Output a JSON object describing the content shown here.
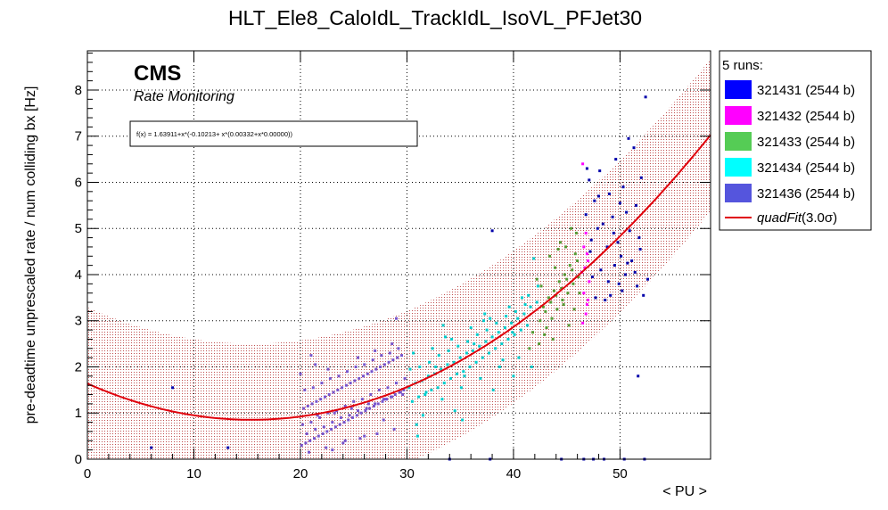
{
  "chart_data": {
    "type": "scatter",
    "title": "HLT_Ele8_CaloIdL_TrackIdL_IsoVL_PFJet30",
    "xlabel": "< PU >",
    "ylabel": "pre-deadtime unprescaled rate / num colliding bx [Hz]",
    "xlim": [
      0,
      58.5
    ],
    "ylim": [
      0,
      8.85
    ],
    "x_ticks": [
      "0",
      "10",
      "20",
      "30",
      "40",
      "50"
    ],
    "y_ticks": [
      "0",
      "1",
      "2",
      "3",
      "4",
      "5",
      "6",
      "7",
      "8"
    ],
    "grid": true,
    "cms_label": "CMS",
    "cms_sublabel": "Rate Monitoring",
    "fit_formula": "f(x) = 1.63911+x*(-0.10213+ x*(0.00332+x*0.00000))",
    "fit": {
      "name": "quadFit",
      "sigma": "(3.0σ)",
      "a": 1.63911,
      "b": -0.10213,
      "c": 0.00332,
      "band_half_width": 1.65,
      "color": "#e0000b"
    },
    "legend": {
      "header": "5 runs:",
      "position": "outside-right",
      "entries": [
        {
          "label": "321431 (2544 b)",
          "color": "#0000ff"
        },
        {
          "label": "321432 (2544 b)",
          "color": "#ff00ff"
        },
        {
          "label": "321433 (2544 b)",
          "color": "#55cc55"
        },
        {
          "label": "321434 (2544 b)",
          "color": "#00ffff"
        },
        {
          "label": "321436 (2544 b)",
          "color": "#5555dd"
        }
      ]
    },
    "series": [
      {
        "name": "321431 (2544 b)",
        "color": "#0000aa",
        "x": [
          52.4,
          50.8,
          51.3,
          49.6,
          48.1,
          52.0,
          50.3,
          49.0,
          47.6,
          51.5,
          50.6,
          49.3,
          48.4,
          47.9,
          50.9,
          51.8,
          49.8,
          48.8,
          47.2,
          50.1,
          51.1,
          49.5,
          48.2,
          50.5,
          47.4,
          48.9,
          51.6,
          50.2,
          49.1,
          47.7,
          52.2,
          51.9,
          50.7,
          49.9,
          48.6,
          47.3,
          46.8,
          50.0,
          48.0,
          49.4,
          46.9,
          47.1,
          52.6,
          51.4,
          38.0,
          8.0,
          6.0,
          13.2,
          47.5,
          44.5,
          34.0,
          37.8,
          46.6,
          48.5,
          50.4,
          51.7,
          52.3
        ],
        "y": [
          7.85,
          6.95,
          6.75,
          6.5,
          6.25,
          6.1,
          5.9,
          5.75,
          5.6,
          5.5,
          5.35,
          5.25,
          5.1,
          5.0,
          4.95,
          4.8,
          4.7,
          4.6,
          4.5,
          4.4,
          4.3,
          4.2,
          4.1,
          4.0,
          3.95,
          3.85,
          3.75,
          3.65,
          3.55,
          3.5,
          3.55,
          4.55,
          4.25,
          3.8,
          3.45,
          4.75,
          5.3,
          5.55,
          5.7,
          4.9,
          6.3,
          6.05,
          3.9,
          4.05,
          4.95,
          1.55,
          0.25,
          0.25,
          0.0,
          0.0,
          0.0,
          0.0,
          0.0,
          0.0,
          0.0,
          1.8,
          0.0
        ]
      },
      {
        "name": "321432 (2544 b)",
        "color": "#ff00ff",
        "x": [
          46.5,
          46.8,
          46.6,
          46.9,
          47.0,
          46.7,
          46.4,
          47.1,
          46.6,
          46.9,
          46.8,
          46.5,
          47.0
        ],
        "y": [
          6.4,
          4.9,
          4.6,
          4.45,
          4.3,
          4.15,
          4.05,
          3.85,
          3.6,
          3.35,
          3.15,
          2.95,
          3.45
        ]
      },
      {
        "name": "321433 (2544 b)",
        "color": "#559933",
        "x": [
          42.5,
          43.0,
          43.5,
          44.0,
          44.5,
          45.0,
          45.5,
          46.0,
          42.8,
          43.3,
          43.8,
          44.3,
          44.8,
          45.3,
          45.8,
          43.1,
          43.6,
          44.1,
          44.6,
          45.1,
          45.6,
          42.6,
          43.9,
          44.9,
          45.9,
          43.4,
          44.4,
          45.4,
          42.9,
          44.7,
          46.1,
          43.7,
          42.4,
          45.2,
          41.8,
          41.5,
          42.2,
          44.2,
          45.7,
          46.2
        ],
        "y": [
          3.0,
          3.2,
          3.4,
          3.55,
          3.7,
          3.9,
          4.1,
          4.3,
          3.3,
          3.5,
          3.65,
          3.85,
          4.0,
          4.2,
          4.45,
          2.85,
          3.05,
          3.25,
          3.45,
          3.6,
          3.8,
          3.75,
          4.15,
          4.6,
          4.9,
          4.4,
          4.7,
          5.0,
          2.7,
          3.35,
          3.95,
          2.6,
          2.5,
          2.9,
          2.75,
          2.4,
          3.9,
          4.55,
          3.25,
          3.6
        ]
      },
      {
        "name": "321434 (2544 b)",
        "color": "#00cccc",
        "x": [
          30.2,
          30.8,
          31.4,
          32.0,
          32.6,
          33.2,
          33.8,
          34.4,
          35.0,
          35.6,
          36.2,
          36.8,
          37.4,
          38.0,
          38.6,
          39.2,
          39.8,
          40.4,
          41.0,
          41.6,
          42.2,
          30.5,
          31.1,
          31.7,
          32.3,
          32.9,
          33.5,
          34.1,
          34.7,
          35.3,
          35.9,
          36.5,
          37.1,
          37.7,
          38.3,
          38.9,
          39.5,
          40.1,
          40.7,
          41.3,
          30.3,
          31.2,
          32.1,
          33.0,
          33.9,
          34.8,
          35.7,
          36.6,
          37.5,
          38.4,
          39.3,
          40.2,
          41.1,
          31.5,
          33.3,
          35.1,
          36.9,
          38.7,
          40.5,
          32.4,
          34.2,
          36.0,
          37.8,
          39.6,
          41.4,
          30.9,
          34.5,
          38.1,
          41.7,
          30.6,
          33.6,
          37.2,
          40.8,
          42.3,
          31.8,
          35.4,
          39.0,
          32.7,
          36.3,
          39.9,
          31.0,
          35.2,
          40.0,
          33.4,
          37.3,
          41.9
        ],
        "y": [
          1.55,
          1.65,
          1.7,
          1.8,
          1.85,
          1.95,
          2.05,
          2.1,
          2.2,
          2.3,
          2.35,
          2.45,
          2.55,
          2.65,
          2.75,
          2.85,
          2.95,
          3.05,
          3.15,
          3.3,
          3.4,
          1.25,
          1.35,
          1.4,
          1.5,
          1.55,
          1.65,
          1.75,
          1.85,
          1.9,
          2.0,
          2.1,
          2.2,
          2.3,
          2.4,
          2.5,
          2.6,
          2.7,
          2.8,
          2.9,
          1.95,
          2.0,
          2.1,
          2.25,
          2.35,
          2.45,
          2.55,
          2.7,
          2.8,
          2.95,
          3.1,
          3.2,
          3.35,
          0.95,
          1.3,
          1.55,
          1.75,
          2.0,
          2.2,
          2.4,
          2.6,
          2.85,
          3.05,
          3.3,
          3.55,
          0.75,
          1.05,
          1.5,
          2.0,
          2.3,
          2.65,
          3.0,
          3.5,
          3.75,
          1.45,
          1.8,
          2.15,
          2.0,
          2.5,
          2.75,
          0.5,
          0.85,
          1.8,
          2.9,
          3.15,
          4.35
        ]
      },
      {
        "name": "321436 (2544 b)",
        "color": "#7755cc",
        "x": [
          20.1,
          20.5,
          20.9,
          21.3,
          21.7,
          22.1,
          22.5,
          22.9,
          23.3,
          23.7,
          24.1,
          24.5,
          24.9,
          25.3,
          25.7,
          26.1,
          26.5,
          26.9,
          27.3,
          27.7,
          28.1,
          28.5,
          28.9,
          29.3,
          29.7,
          20.3,
          20.7,
          21.1,
          21.5,
          21.9,
          22.3,
          22.7,
          23.1,
          23.5,
          23.9,
          24.3,
          24.7,
          25.1,
          25.5,
          25.9,
          26.3,
          26.7,
          27.1,
          27.5,
          27.9,
          28.3,
          28.7,
          29.1,
          29.5,
          20.2,
          21.0,
          21.8,
          22.6,
          23.4,
          24.2,
          25.0,
          25.8,
          26.6,
          27.4,
          28.2,
          29.0,
          29.8,
          20.6,
          21.4,
          22.2,
          23.0,
          23.8,
          24.6,
          25.4,
          26.2,
          27.0,
          27.8,
          28.6,
          29.4,
          20.4,
          21.2,
          22.0,
          22.8,
          23.6,
          24.4,
          25.2,
          26.0,
          26.8,
          27.6,
          28.4,
          29.2,
          20.8,
          22.4,
          24.0,
          25.6,
          27.2,
          28.8,
          21.6,
          23.2,
          24.8,
          26.4,
          28.0,
          29.6,
          20.0,
          21.4,
          22.6,
          25.4,
          27.0,
          28.6,
          23.0,
          26.0,
          24.2,
          27.8,
          29.0,
          21.0
        ],
        "y": [
          0.3,
          0.35,
          0.4,
          0.45,
          0.5,
          0.55,
          0.6,
          0.65,
          0.7,
          0.75,
          0.8,
          0.85,
          0.9,
          0.95,
          1.0,
          1.05,
          1.1,
          1.15,
          1.2,
          1.25,
          1.3,
          1.35,
          1.4,
          1.45,
          1.5,
          1.1,
          1.15,
          1.2,
          1.25,
          1.3,
          1.35,
          1.4,
          1.45,
          1.5,
          1.55,
          1.6,
          1.65,
          1.7,
          1.75,
          1.8,
          1.85,
          1.9,
          1.95,
          2.0,
          2.05,
          2.1,
          2.15,
          2.2,
          2.25,
          0.75,
          0.8,
          0.9,
          1.0,
          1.05,
          1.15,
          1.25,
          1.3,
          1.4,
          1.5,
          1.55,
          1.65,
          1.75,
          0.55,
          0.65,
          0.7,
          0.8,
          0.9,
          0.95,
          1.05,
          1.1,
          1.2,
          1.3,
          1.35,
          1.45,
          1.5,
          1.55,
          1.65,
          1.75,
          1.8,
          1.9,
          2.0,
          2.05,
          2.15,
          2.25,
          2.3,
          2.4,
          0.15,
          0.25,
          0.35,
          0.45,
          0.55,
          0.65,
          0.95,
          1.0,
          1.1,
          1.2,
          1.3,
          1.4,
          1.85,
          2.05,
          1.95,
          2.2,
          2.35,
          2.5,
          0.2,
          0.5,
          0.4,
          0.85,
          3.05,
          2.25
        ]
      }
    ]
  }
}
